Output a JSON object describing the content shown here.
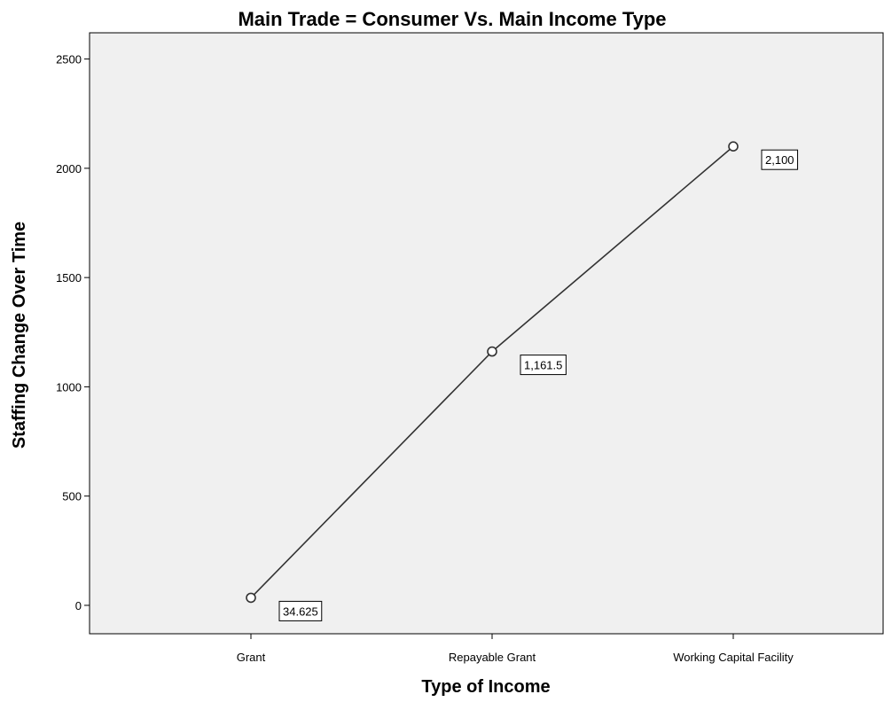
{
  "chart_data": {
    "type": "line",
    "title": "Main Trade = Consumer Vs. Main Income Type",
    "xlabel": "Type of Income",
    "ylabel": "Staffing Change Over Time",
    "categories": [
      "Grant",
      "Repayable Grant",
      "Working Capital Facility"
    ],
    "values": [
      34.625,
      1161.5,
      2100
    ],
    "data_labels": [
      "34.625",
      "1,161.5",
      "2,100"
    ],
    "ylim": [
      -130,
      2620
    ],
    "yticks": [
      0,
      500,
      1000,
      1500,
      2000,
      2500
    ],
    "ytick_labels": [
      "0",
      "500",
      "1000",
      "1500",
      "2000",
      "2500"
    ],
    "grid": false,
    "legend": "none",
    "colors": {
      "plot_background": "#f0f0f0",
      "line": "#333333",
      "marker_fill": "#ffffff",
      "label_box_fill": "#ffffff"
    }
  }
}
